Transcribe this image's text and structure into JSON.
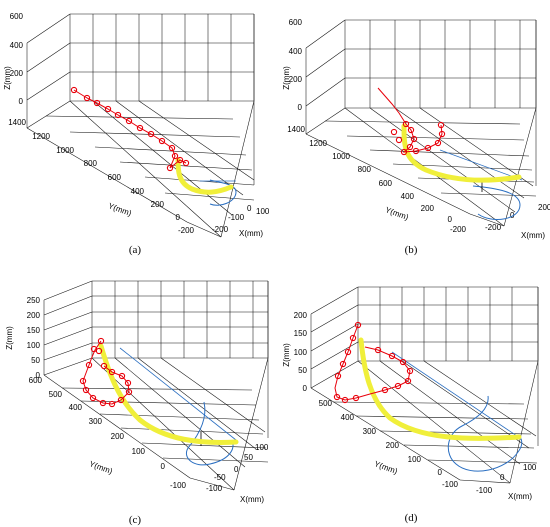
{
  "colors": {
    "robot": "#e8000b",
    "path": "#f0ef3a",
    "projection": "#2b6fc1",
    "axes": "#000000"
  },
  "chart_data": [
    {
      "type": "line3d",
      "caption": "(a)",
      "xlabel": "X(mm)",
      "ylabel": "Y(mm)",
      "zlabel": "Z(mm)",
      "xticks": [
        "-200",
        "-100",
        "0",
        "100"
      ],
      "yticks": [
        "-200",
        "0",
        "200",
        "400",
        "600",
        "800",
        "1000",
        "1200",
        "1400"
      ],
      "zticks": [
        "0",
        "200",
        "400",
        "600"
      ],
      "grid": true
    },
    {
      "type": "line3d",
      "caption": "(b)",
      "xlabel": "X(mm)",
      "ylabel": "Y(mm)",
      "zlabel": "Z(mm)",
      "xticks": [
        "-200",
        "0",
        "200"
      ],
      "yticks": [
        "-200",
        "0",
        "200",
        "400",
        "600",
        "800",
        "1000",
        "1200",
        "1400"
      ],
      "zticks": [
        "0",
        "200",
        "400",
        "600"
      ],
      "grid": true
    },
    {
      "type": "line3d",
      "caption": "(c)",
      "xlabel": "X(mm)",
      "ylabel": "Y(mm)",
      "zlabel": "Z(mm)",
      "xticks": [
        "-100",
        "-50",
        "0",
        "50",
        "100"
      ],
      "yticks": [
        "-100",
        "0",
        "100",
        "200",
        "300",
        "400",
        "500",
        "600"
      ],
      "zticks": [
        "0",
        "50",
        "100",
        "150",
        "200",
        "250"
      ],
      "grid": true
    },
    {
      "type": "line3d",
      "caption": "(d)",
      "xlabel": "X(mm)",
      "ylabel": "Y(mm)",
      "zlabel": "Z(mm)",
      "xticks": [
        "-100",
        "0",
        "100"
      ],
      "yticks": [
        "-100",
        "0",
        "100",
        "200",
        "300",
        "400",
        "500"
      ],
      "zticks": [
        "0",
        "50",
        "100",
        "150",
        "200"
      ],
      "grid": true
    }
  ]
}
